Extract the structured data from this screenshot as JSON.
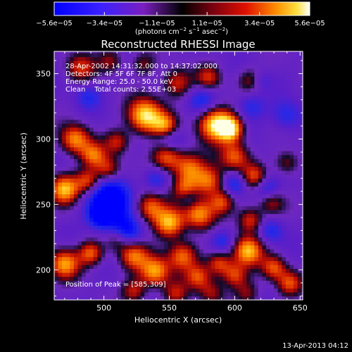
{
  "chart_data": {
    "type": "heatmap",
    "title": "Reconstructed RHESSI Image",
    "xlabel": "Heliocentric X (arcsec)",
    "ylabel": "Heliocentric Y (arcsec)",
    "xlim": [
      462,
      652
    ],
    "ylim": [
      177,
      367
    ],
    "x_ticks": [
      500,
      550,
      600,
      650
    ],
    "y_ticks": [
      200,
      250,
      300,
      350
    ],
    "colorbar": {
      "min": -5.6e-05,
      "max": 5.6e-05,
      "tick_labels": [
        "−5.6e−05",
        "−3.4e−05",
        "−1.1e−05",
        "1.1e−05",
        "3.4e−05",
        "5.6e−05"
      ],
      "tick_values": [
        -5.6e-05,
        -3.4e-05,
        -1.1e-05,
        1.1e-05,
        3.4e-05,
        5.6e-05
      ],
      "units_prefix": "(photons cm",
      "units_sup1": "−2",
      "units_mid": " s",
      "units_sup2": "−1",
      "units_mid2": " asec",
      "units_sup3": "−2",
      "units_suffix": ")"
    },
    "annotations": {
      "time_range": "28-Apr-2002 14:31:32.000 to 14:37:02.000",
      "detectors": "Detectors: 4F 5F 6F 7F 8F, Att 0",
      "energy": "Energy Range: 25.0 - 50.0 keV",
      "clean": "Clean    Total counts: 2.55E+03",
      "peak": "Position of Peak = [585,309]"
    },
    "peak": [
      585,
      309
    ],
    "blobs": [
      [
        532,
        318,
        14,
        1.0
      ],
      [
        585,
        312,
        14,
        1.0
      ],
      [
        597,
        308,
        10,
        0.9
      ],
      [
        547,
        310,
        10,
        0.7
      ],
      [
        556,
        343,
        12,
        0.55
      ],
      [
        580,
        347,
        10,
        0.5
      ],
      [
        612,
        345,
        10,
        0.4
      ],
      [
        482,
        355,
        12,
        0.5
      ],
      [
        505,
        360,
        10,
        0.4
      ],
      [
        530,
        358,
        10,
        0.35
      ],
      [
        478,
        300,
        12,
        0.75
      ],
      [
        492,
        288,
        10,
        0.6
      ],
      [
        510,
        298,
        10,
        0.5
      ],
      [
        470,
        262,
        12,
        0.85
      ],
      [
        488,
        268,
        10,
        0.65
      ],
      [
        503,
        277,
        10,
        0.55
      ],
      [
        548,
        287,
        12,
        0.75
      ],
      [
        565,
        278,
        12,
        0.65
      ],
      [
        562,
        262,
        10,
        0.55
      ],
      [
        580,
        268,
        12,
        0.7
      ],
      [
        600,
        287,
        12,
        0.65
      ],
      [
        615,
        272,
        10,
        0.55
      ],
      [
        640,
        282,
        10,
        0.4
      ],
      [
        535,
        248,
        12,
        0.7
      ],
      [
        550,
        236,
        12,
        0.85
      ],
      [
        573,
        243,
        12,
        0.75
      ],
      [
        590,
        252,
        10,
        0.6
      ],
      [
        612,
        238,
        10,
        0.6
      ],
      [
        628,
        252,
        10,
        0.45
      ],
      [
        470,
        205,
        12,
        0.8
      ],
      [
        490,
        213,
        10,
        0.65
      ],
      [
        510,
        223,
        10,
        0.6
      ],
      [
        522,
        212,
        12,
        0.75
      ],
      [
        539,
        199,
        12,
        0.8
      ],
      [
        560,
        211,
        12,
        0.7
      ],
      [
        572,
        195,
        10,
        0.55
      ],
      [
        588,
        205,
        10,
        0.6
      ],
      [
        600,
        196,
        10,
        0.55
      ],
      [
        610,
        215,
        12,
        0.85
      ],
      [
        630,
        202,
        10,
        0.6
      ],
      [
        642,
        190,
        10,
        0.55
      ],
      [
        523,
        184,
        10,
        0.5
      ],
      [
        555,
        182,
        10,
        0.45
      ],
      [
        582,
        183,
        10,
        0.4
      ],
      [
        610,
        182,
        10,
        0.4
      ],
      [
        505,
        254,
        -18,
        -0.75
      ],
      [
        515,
        227,
        -14,
        -0.7
      ],
      [
        497,
        241,
        -10,
        -0.5
      ],
      [
        550,
        300,
        -12,
        -0.45
      ],
      [
        575,
        330,
        -12,
        -0.4
      ],
      [
        612,
        325,
        -12,
        -0.35
      ],
      [
        600,
        266,
        -10,
        -0.45
      ],
      [
        625,
        262,
        -10,
        -0.4
      ],
      [
        640,
        318,
        -12,
        -0.35
      ],
      [
        590,
        222,
        -10,
        -0.4
      ],
      [
        565,
        255,
        -8,
        -0.3
      ],
      [
        540,
        270,
        -10,
        -0.35
      ],
      [
        620,
        345,
        -8,
        -0.25
      ],
      [
        488,
        333,
        -10,
        -0.3
      ],
      [
        628,
        230,
        -10,
        -0.35
      ]
    ]
  },
  "footer": {
    "date": "13-Apr-2013 04:12"
  }
}
